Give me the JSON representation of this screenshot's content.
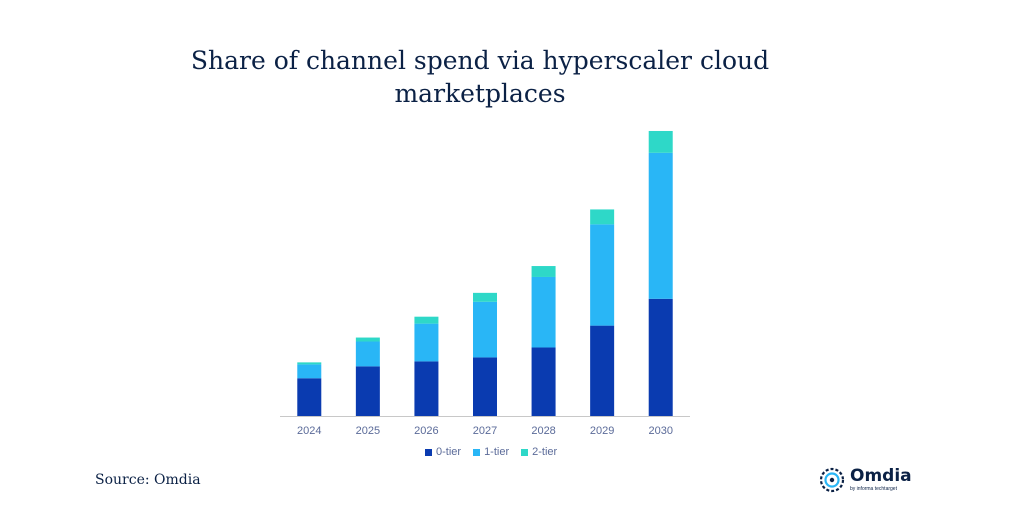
{
  "title_lines": [
    "Share of channel spend via hyperscaler cloud",
    "marketplaces"
  ],
  "source": "Source: Omdia",
  "logo": {
    "name": "Omdia",
    "sub": "by informa techtarget"
  },
  "colors": {
    "tier0": "#0a3bb0",
    "tier1": "#29b6f6",
    "tier2": "#2ed8c8",
    "axis": "#c8c8c8",
    "text": "#5b6b99"
  },
  "chart_data": {
    "type": "bar",
    "stacked": true,
    "title": "Share of channel spend via hyperscaler cloud marketplaces",
    "categories": [
      "2024",
      "2025",
      "2026",
      "2027",
      "2028",
      "2029",
      "2030"
    ],
    "series": [
      {
        "name": "0-tier",
        "values": [
          3.8,
          5.0,
          5.5,
          5.9,
          6.9,
          9.1,
          11.8
        ]
      },
      {
        "name": "1-tier",
        "values": [
          1.4,
          2.5,
          3.8,
          5.6,
          7.1,
          10.2,
          14.7
        ]
      },
      {
        "name": "2-tier",
        "values": [
          0.2,
          0.4,
          0.7,
          0.9,
          1.1,
          1.5,
          2.2
        ]
      }
    ],
    "ylim": [
      0,
      29
    ],
    "xlabel": "",
    "ylabel": "",
    "legend": "bottom",
    "grid": false
  }
}
